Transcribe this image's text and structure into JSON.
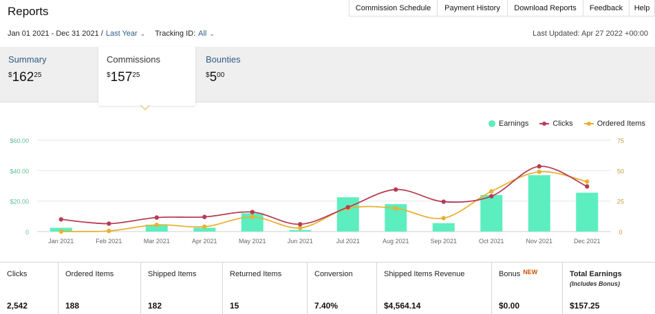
{
  "header": {
    "title": "Reports"
  },
  "nav": [
    {
      "label": "Commission Schedule"
    },
    {
      "label": "Payment History"
    },
    {
      "label": "Download Reports"
    },
    {
      "label": "Feedback"
    },
    {
      "label": "Help"
    }
  ],
  "filters": {
    "date_range": "Jan 01 2021 - Dec 31 2021 /",
    "period": "Last Year",
    "tracking_label": "Tracking ID:",
    "tracking_value": "All",
    "last_updated": "Last Updated: Apr 27 2022 +00:00"
  },
  "tabs": [
    {
      "label": "Summary",
      "currency": "$",
      "whole": "162",
      "cents": "25"
    },
    {
      "label": "Commissions",
      "currency": "$",
      "whole": "157",
      "cents": "25"
    },
    {
      "label": "Bounties",
      "currency": "$",
      "whole": "5",
      "cents": "00"
    }
  ],
  "legend": {
    "earnings": "Earnings",
    "clicks": "Clicks",
    "ordered": "Ordered Items"
  },
  "colors": {
    "earnings": "#5deec0",
    "clicks": "#b83b54",
    "ordered": "#e8b131",
    "link": "#2e5a84"
  },
  "chart_data": {
    "type": "bar",
    "categories": [
      "Jan 2021",
      "Feb 2021",
      "Mar 2021",
      "Apr 2021",
      "May 2021",
      "Jun 2021",
      "Jul 2021",
      "Aug 2021",
      "Sep 2021",
      "Oct 2021",
      "Nov 2021",
      "Dec 2021"
    ],
    "y_left": {
      "ticks": [
        "0",
        "$20.00",
        "$40.00",
        "$60.00"
      ],
      "min": 0,
      "max": 60
    },
    "y_right": {
      "ticks": [
        "0",
        "25",
        "50",
        "75"
      ],
      "min": 0,
      "max": 75
    },
    "series": [
      {
        "name": "Earnings",
        "type": "bar",
        "axis": "left",
        "values": [
          2.5,
          0,
          4.5,
          2.5,
          12,
          1,
          22.5,
          18,
          5.5,
          24,
          37,
          25.5
        ]
      },
      {
        "name": "Clicks",
        "type": "line",
        "axis": "right",
        "values": [
          10,
          6.5,
          11.5,
          12,
          16,
          6,
          20,
          34.5,
          24.5,
          29,
          53.5,
          37
        ]
      },
      {
        "name": "Ordered Items",
        "type": "line",
        "axis": "right",
        "values": [
          0,
          0.5,
          5.5,
          4,
          12,
          3,
          19,
          19,
          11,
          33,
          49,
          41
        ]
      }
    ],
    "legend_position": "top-right",
    "grid": true
  },
  "stats": [
    {
      "label": "Clicks",
      "value": "2,542"
    },
    {
      "label": "Ordered Items",
      "value": "188"
    },
    {
      "label": "Shipped Items",
      "value": "182"
    },
    {
      "label": "Returned Items",
      "value": "15"
    },
    {
      "label": "Conversion",
      "value": "7.40%"
    },
    {
      "label": "Shipped Items Revenue",
      "value": "$4,564.14"
    },
    {
      "label": "Bonus",
      "badge": "NEW",
      "value": "$0.00"
    },
    {
      "label": "Total Earnings",
      "sub": "(Includes Bonus)",
      "value": "$157.25"
    }
  ]
}
